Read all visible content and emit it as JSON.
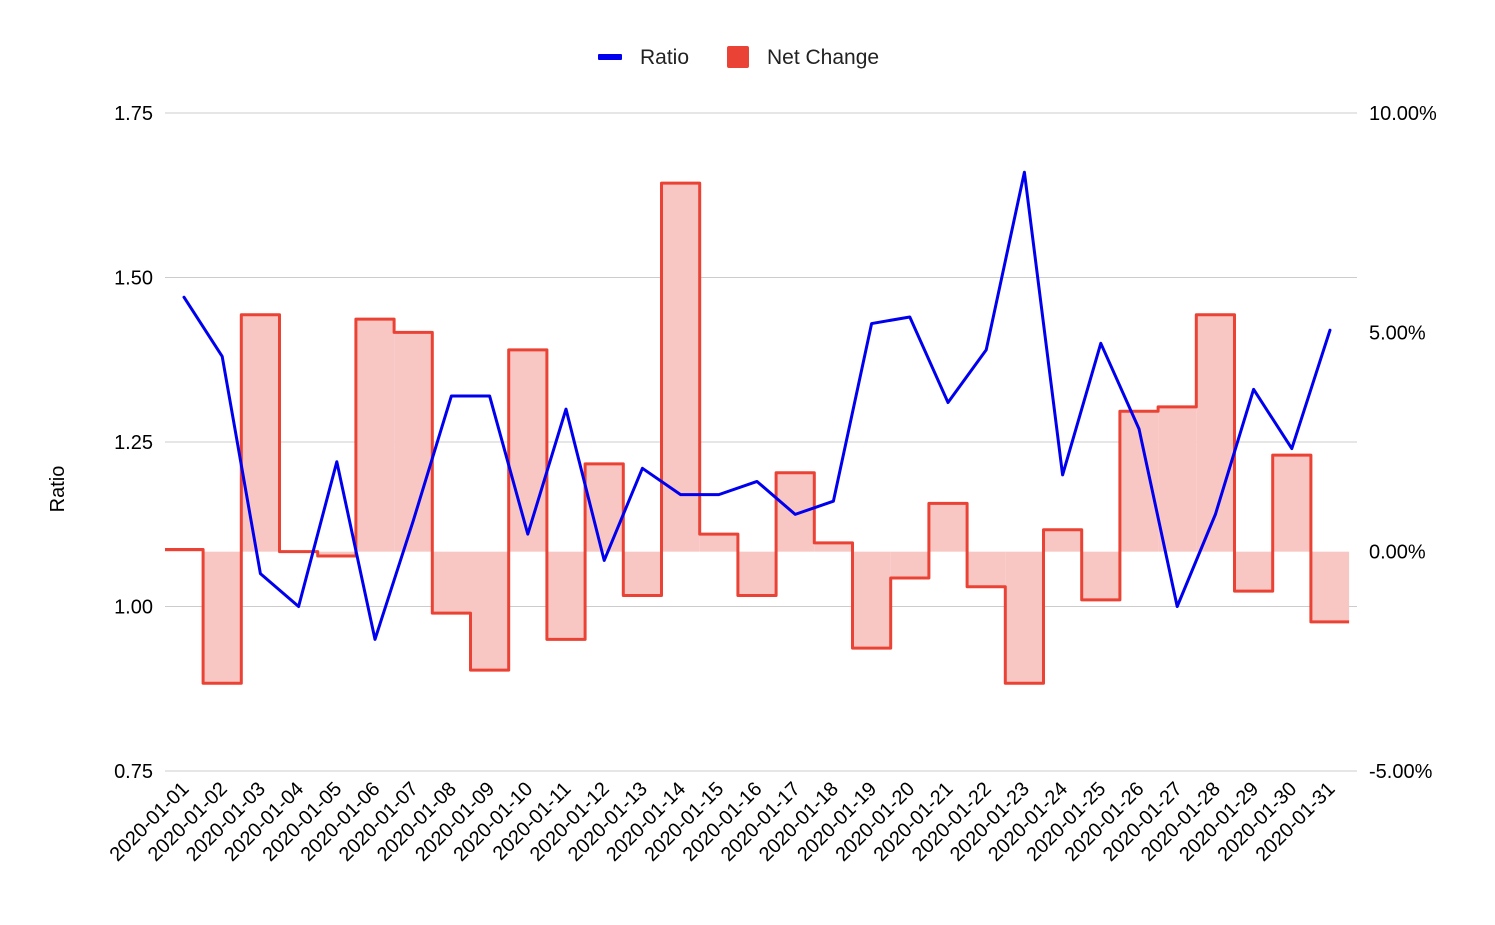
{
  "chart_data": {
    "type": "combo",
    "ylabel": "Ratio",
    "legend": {
      "position": "top",
      "items": [
        {
          "name": "Ratio",
          "color": "#0000ee",
          "kind": "line"
        },
        {
          "name": "Net Change",
          "color": "#ea4335",
          "kind": "area"
        }
      ]
    },
    "left_axis": {
      "ylim": [
        0.75,
        1.75
      ],
      "ticks": [
        "1.75",
        "1.50",
        "1.25",
        "1.00",
        "0.75"
      ],
      "tick_values": [
        1.75,
        1.5,
        1.25,
        1.0,
        0.75
      ]
    },
    "right_axis": {
      "ylim": [
        -0.05,
        0.1
      ],
      "ticks": [
        "10.00%",
        "5.00%",
        "0.00%",
        "-5.00%"
      ],
      "tick_values": [
        0.1,
        0.05,
        0.0,
        -0.05
      ]
    },
    "grid": true,
    "x": [
      "2020-01-01",
      "2020-01-02",
      "2020-01-03",
      "2020-01-04",
      "2020-01-05",
      "2020-01-06",
      "2020-01-07",
      "2020-01-08",
      "2020-01-09",
      "2020-01-10",
      "2020-01-11",
      "2020-01-12",
      "2020-01-13",
      "2020-01-14",
      "2020-01-15",
      "2020-01-16",
      "2020-01-17",
      "2020-01-18",
      "2020-01-19",
      "2020-01-20",
      "2020-01-21",
      "2020-01-22",
      "2020-01-23",
      "2020-01-24",
      "2020-01-25",
      "2020-01-26",
      "2020-01-27",
      "2020-01-28",
      "2020-01-29",
      "2020-01-30",
      "2020-01-31"
    ],
    "series": [
      {
        "name": "Ratio",
        "axis": "left",
        "type": "line",
        "color": "#0000ee",
        "values": [
          1.47,
          1.38,
          1.05,
          1.0,
          1.22,
          0.95,
          1.13,
          1.32,
          1.32,
          1.11,
          1.3,
          1.07,
          1.21,
          1.17,
          1.17,
          1.19,
          1.14,
          1.16,
          1.43,
          1.44,
          1.31,
          1.39,
          1.66,
          1.2,
          1.4,
          1.27,
          1.0,
          1.14,
          1.33,
          1.24,
          1.42
        ]
      },
      {
        "name": "Net Change",
        "axis": "right",
        "type": "stepped-area",
        "color": "#ea4335",
        "values": [
          0.0005,
          -0.03,
          0.054,
          0.0,
          -0.001,
          0.053,
          0.05,
          -0.014,
          -0.027,
          0.046,
          -0.02,
          0.02,
          -0.01,
          0.084,
          0.004,
          -0.01,
          0.018,
          0.002,
          -0.022,
          -0.006,
          0.011,
          -0.008,
          -0.03,
          0.005,
          -0.011,
          0.032,
          0.033,
          0.054,
          -0.009,
          0.022,
          -0.016
        ]
      }
    ]
  }
}
